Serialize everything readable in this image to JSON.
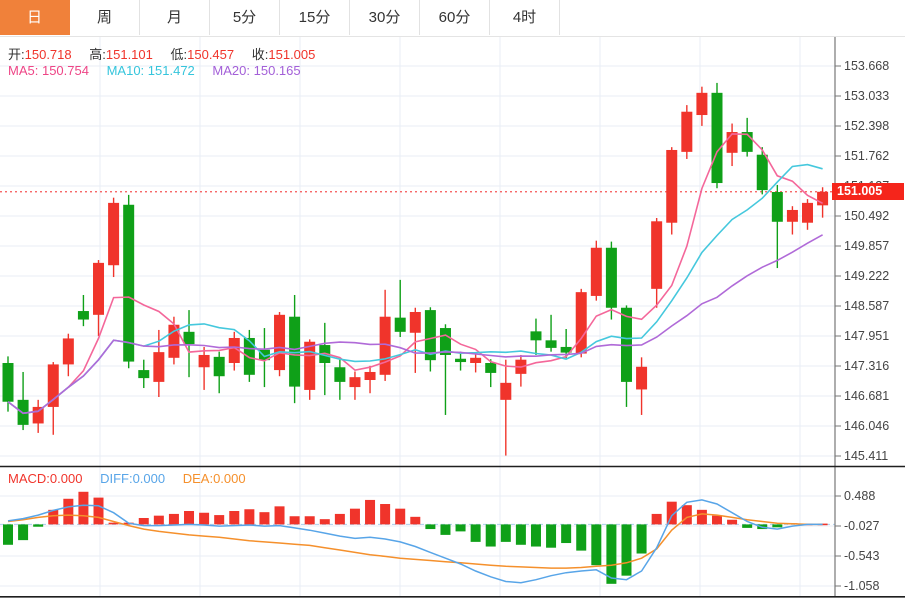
{
  "tabs": {
    "items": [
      {
        "id": "day",
        "label": "日",
        "active": true
      },
      {
        "id": "week",
        "label": "周",
        "active": false
      },
      {
        "id": "month",
        "label": "月",
        "active": false
      },
      {
        "id": "5min",
        "label": "5分",
        "active": false
      },
      {
        "id": "15min",
        "label": "15分",
        "active": false
      },
      {
        "id": "30min",
        "label": "30分",
        "active": false
      },
      {
        "id": "60min",
        "label": "60分",
        "active": false
      },
      {
        "id": "4hour",
        "label": "4时",
        "active": false
      }
    ]
  },
  "readout": {
    "open_label": "开:",
    "open": "150.718",
    "high_label": "高:",
    "high": "151.101",
    "low_label": "低:",
    "low": "150.457",
    "close_label": "收:",
    "close": "151.005"
  },
  "ma_readout": {
    "ma5_label": "MA5:",
    "ma5": "150.754",
    "ma10_label": "MA10:",
    "ma10": "151.472",
    "ma20_label": "MA20:",
    "ma20": "150.165"
  },
  "macd_readout": {
    "macd_label": "MACD:",
    "macd": "0.000",
    "diff_label": "DIFF:",
    "diff": "0.000",
    "dea_label": "DEA:",
    "dea": "0.000"
  },
  "price_axis": {
    "ticks": [
      "153.668",
      "153.033",
      "152.398",
      "151.762",
      "151.127",
      "150.492",
      "149.857",
      "149.222",
      "148.587",
      "147.951",
      "147.316",
      "146.681",
      "146.046",
      "145.411"
    ],
    "last_price": "151.005"
  },
  "macd_axis": {
    "ticks": [
      "0.488",
      "-0.027",
      "-0.543",
      "-1.058"
    ]
  },
  "colors": {
    "up": "#f0342b",
    "down": "#0fa018",
    "ma5": "#f4679a",
    "ma10": "#45c8dd",
    "ma20": "#b06ad8",
    "diff": "#58a5e8",
    "dea": "#f5902c",
    "grid": "#e9eef6",
    "axis_line": "#777",
    "axis_text": "#444",
    "separator": "#1f1f1f",
    "dotted_price_line": "#f55555",
    "macd_zero_dash": "#a9cdec",
    "badge": "#f5251b",
    "tab_active": "#f0813a"
  },
  "chart_data": {
    "type": "candlestick",
    "title": "",
    "legend": [
      "MA5",
      "MA10",
      "MA20",
      "MACD",
      "DIFF",
      "DEA"
    ],
    "price_pane": {
      "ylim": [
        145.1,
        153.9
      ],
      "yticks": [
        153.668,
        153.033,
        152.398,
        151.762,
        151.127,
        150.492,
        149.857,
        149.222,
        148.587,
        147.951,
        147.316,
        146.681,
        146.046,
        145.411
      ],
      "last_price": 151.005,
      "last_ohlc": {
        "open": 150.718,
        "high": 151.101,
        "low": 150.457,
        "close": 151.005
      },
      "ma_values": {
        "ma5": 150.754,
        "ma10": 151.472,
        "ma20": 150.165
      },
      "candles_ohlc": [
        [
          147.38,
          147.52,
          146.35,
          146.56
        ],
        [
          146.6,
          147.19,
          145.96,
          146.07
        ],
        [
          146.1,
          146.6,
          145.9,
          146.45
        ],
        [
          146.45,
          147.4,
          145.86,
          147.35
        ],
        [
          147.35,
          148.0,
          147.1,
          147.9
        ],
        [
          148.48,
          148.82,
          148.16,
          148.3
        ],
        [
          148.4,
          149.56,
          147.95,
          149.5
        ],
        [
          149.45,
          150.88,
          149.2,
          150.77
        ],
        [
          150.73,
          150.94,
          147.27,
          147.41
        ],
        [
          147.23,
          147.45,
          146.85,
          147.06
        ],
        [
          146.98,
          148.08,
          146.66,
          147.61
        ],
        [
          147.49,
          148.36,
          147.35,
          148.19
        ],
        [
          148.04,
          148.5,
          147.08,
          147.78
        ],
        [
          147.29,
          147.72,
          146.81,
          147.55
        ],
        [
          147.51,
          147.62,
          146.74,
          147.1
        ],
        [
          147.38,
          148.04,
          147.22,
          147.91
        ],
        [
          147.91,
          148.08,
          146.98,
          147.13
        ],
        [
          147.66,
          148.12,
          146.87,
          147.44
        ],
        [
          147.23,
          148.46,
          147.1,
          148.4
        ],
        [
          148.36,
          148.82,
          146.53,
          146.88
        ],
        [
          146.81,
          147.88,
          146.6,
          147.83
        ],
        [
          147.76,
          148.23,
          146.7,
          147.38
        ],
        [
          147.29,
          147.45,
          146.6,
          146.98
        ],
        [
          146.87,
          147.2,
          146.6,
          147.08
        ],
        [
          147.02,
          147.32,
          146.74,
          147.19
        ],
        [
          147.13,
          148.93,
          147.0,
          148.36
        ],
        [
          148.34,
          149.14,
          147.93,
          148.04
        ],
        [
          148.02,
          148.55,
          147.17,
          148.46
        ],
        [
          148.5,
          148.56,
          147.2,
          147.44
        ],
        [
          148.12,
          148.2,
          146.28,
          147.55
        ],
        [
          147.47,
          147.62,
          147.22,
          147.4
        ],
        [
          147.38,
          147.56,
          147.18,
          147.49
        ],
        [
          147.38,
          147.46,
          146.87,
          147.17
        ],
        [
          146.6,
          147.45,
          145.42,
          146.96
        ],
        [
          147.15,
          147.55,
          146.88,
          147.45
        ],
        [
          148.05,
          148.32,
          147.55,
          147.86
        ],
        [
          147.86,
          148.4,
          147.62,
          147.7
        ],
        [
          147.72,
          148.1,
          147.48,
          147.6
        ],
        [
          147.58,
          148.95,
          147.5,
          148.88
        ],
        [
          148.8,
          149.97,
          148.7,
          149.82
        ],
        [
          149.82,
          149.95,
          148.3,
          148.55
        ],
        [
          148.55,
          148.6,
          146.45,
          146.98
        ],
        [
          146.82,
          147.5,
          146.28,
          147.3
        ],
        [
          148.95,
          150.45,
          148.55,
          150.38
        ],
        [
          150.35,
          151.95,
          150.1,
          151.89
        ],
        [
          151.85,
          152.84,
          151.7,
          152.7
        ],
        [
          152.63,
          153.23,
          152.4,
          153.1
        ],
        [
          153.1,
          153.31,
          151.08,
          151.19
        ],
        [
          151.83,
          152.45,
          151.55,
          152.27
        ],
        [
          152.27,
          152.57,
          151.75,
          151.85
        ],
        [
          151.79,
          151.95,
          150.95,
          151.04
        ],
        [
          151.0,
          151.15,
          149.39,
          150.37
        ],
        [
          150.37,
          150.7,
          150.1,
          150.62
        ],
        [
          150.35,
          150.85,
          150.2,
          150.77
        ],
        [
          150.718,
          151.101,
          150.457,
          151.005
        ]
      ]
    },
    "macd_pane": {
      "yticks": [
        0.488,
        -0.027,
        -0.543,
        -1.058
      ],
      "last_values": {
        "macd": 0.0,
        "diff": 0.0,
        "dea": 0.0
      },
      "hist": [
        -0.35,
        -0.27,
        -0.04,
        0.25,
        0.44,
        0.56,
        0.46,
        0.03,
        0.03,
        0.11,
        0.15,
        0.18,
        0.23,
        0.2,
        0.16,
        0.23,
        0.26,
        0.21,
        0.31,
        0.14,
        0.14,
        0.09,
        0.18,
        0.27,
        0.42,
        0.35,
        0.27,
        0.13,
        -0.08,
        -0.18,
        -0.12,
        -0.3,
        -0.38,
        -0.3,
        -0.35,
        -0.38,
        -0.4,
        -0.32,
        -0.45,
        -0.7,
        -1.02,
        -0.88,
        -0.5,
        0.18,
        0.39,
        0.33,
        0.25,
        0.15,
        0.08,
        -0.06,
        -0.08,
        -0.05,
        0.02,
        0.01,
        0.0
      ],
      "diff_line": [
        0.06,
        0.1,
        0.16,
        0.24,
        0.3,
        0.33,
        0.32,
        0.2,
        0.02,
        -0.02,
        -0.02,
        -0.01,
        0.0,
        -0.01,
        -0.03,
        -0.02,
        -0.01,
        -0.03,
        -0.02,
        -0.06,
        -0.1,
        -0.15,
        -0.2,
        -0.24,
        -0.22,
        -0.25,
        -0.3,
        -0.38,
        -0.48,
        -0.58,
        -0.68,
        -0.8,
        -0.9,
        -0.98,
        -1.0,
        -0.95,
        -0.88,
        -0.83,
        -0.8,
        -0.78,
        -0.92,
        -0.95,
        -0.8,
        -0.4,
        0.15,
        0.38,
        0.42,
        0.35,
        0.2,
        0.05,
        -0.05,
        -0.08,
        -0.03,
        0.0,
        0.0
      ],
      "dea_line": [
        0.05,
        0.08,
        0.12,
        0.15,
        0.16,
        0.15,
        0.12,
        0.05,
        -0.02,
        -0.08,
        -0.12,
        -0.15,
        -0.18,
        -0.2,
        -0.22,
        -0.25,
        -0.28,
        -0.3,
        -0.32,
        -0.34,
        -0.36,
        -0.4,
        -0.44,
        -0.48,
        -0.52,
        -0.55,
        -0.58,
        -0.6,
        -0.62,
        -0.64,
        -0.66,
        -0.68,
        -0.7,
        -0.72,
        -0.73,
        -0.74,
        -0.75,
        -0.75,
        -0.74,
        -0.72,
        -0.7,
        -0.66,
        -0.58,
        -0.42,
        -0.1,
        0.12,
        0.18,
        0.16,
        0.12,
        0.08,
        0.05,
        0.02,
        0.01,
        0.0,
        0.0
      ]
    }
  }
}
